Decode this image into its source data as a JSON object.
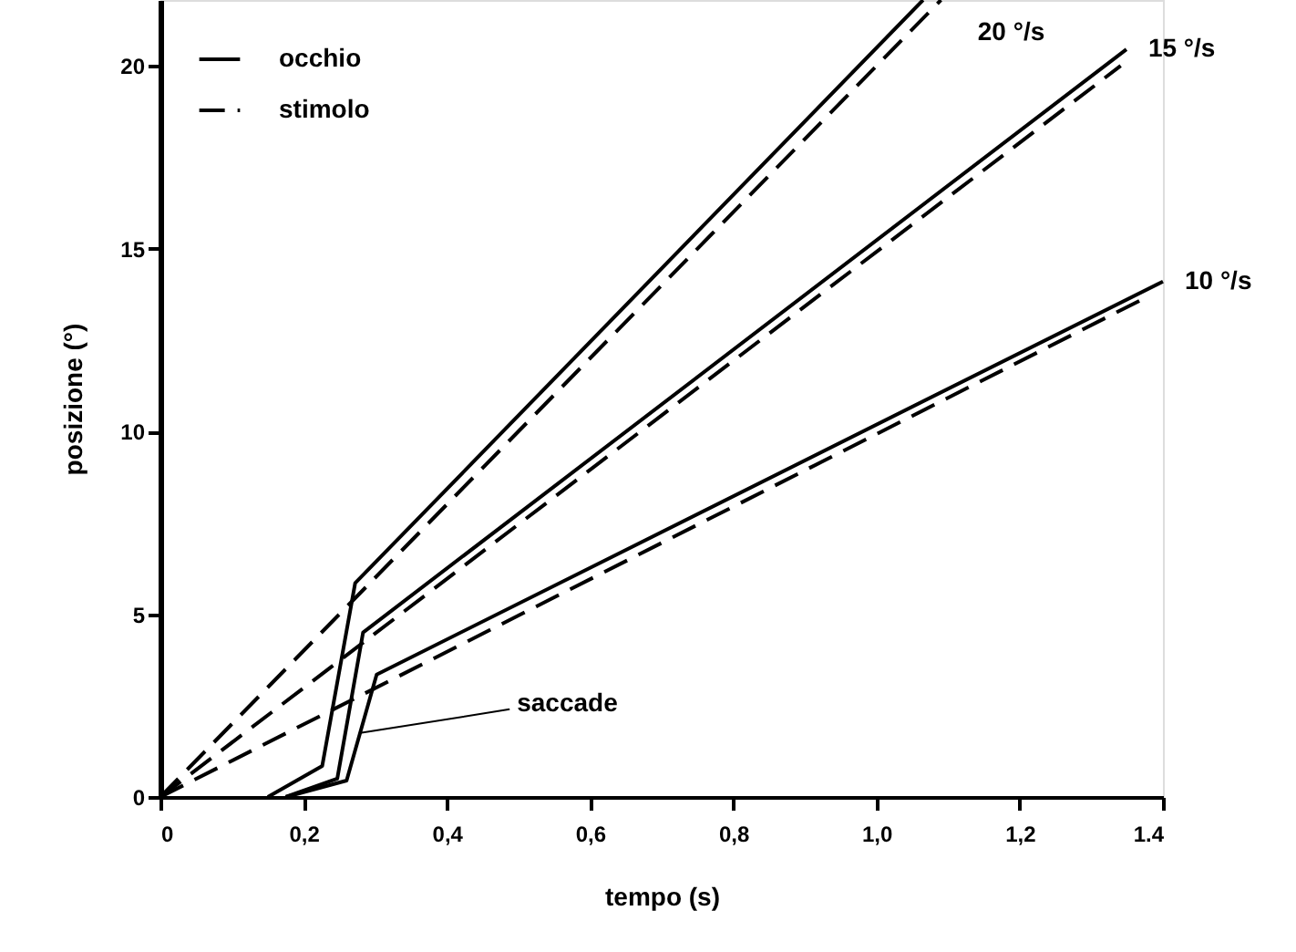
{
  "chart_data": {
    "type": "line",
    "xlabel": "tempo (s)",
    "ylabel": "posizione (°)",
    "xlim": [
      0,
      1.4
    ],
    "ylim": [
      0,
      21.8
    ],
    "xticks": [
      0,
      {
        "value": 0.2,
        "label": "0,2"
      },
      {
        "value": 0.4,
        "label": "0,4"
      },
      {
        "value": 0.6,
        "label": "0,6"
      },
      {
        "value": 0.8,
        "label": "0,8"
      },
      {
        "value": 1.0,
        "label": "1,0"
      },
      {
        "value": 1.2,
        "label": "1,2"
      },
      {
        "value": 1.4,
        "label": "1.4"
      }
    ],
    "yticks": [
      0,
      5,
      10,
      15,
      20
    ],
    "grid": false,
    "legend": "top left",
    "marker": "none",
    "series": [
      {
        "name": "occhio",
        "color": "#000000",
        "line_style": "solid",
        "x": [
          0.15,
          0.226,
          0.272,
          1.065
        ],
        "values": [
          0,
          0.85,
          5.85,
          21.8
        ]
      },
      {
        "name": "stimolo",
        "color": "#000000",
        "line_style": "dashed",
        "x": [
          0,
          1.09
        ],
        "values": [
          0,
          21.8
        ]
      },
      {
        "color": "#000000",
        "line_style": "solid",
        "x": [
          0.175,
          0.247,
          0.283,
          1.349
        ],
        "values": [
          0,
          0.5,
          4.5,
          20.45
        ]
      },
      {
        "color": "#000000",
        "line_style": "dashed",
        "x": [
          0,
          1.341
        ],
        "values": [
          0,
          20.0
        ]
      },
      {
        "color": "#000000",
        "line_style": "solid",
        "x": [
          0.175,
          0.26,
          0.302,
          1.4
        ],
        "values": [
          0,
          0.45,
          3.35,
          14.1
        ]
      },
      {
        "color": "#000000",
        "line_style": "dashed",
        "x": [
          0,
          1.38
        ],
        "values": [
          0,
          13.7
        ]
      }
    ],
    "annotations": [
      {
        "text": "20 °/s",
        "x": 1.065,
        "y": 21.8
      },
      {
        "text": "15 °/s",
        "x": 1.349,
        "y": 20.45
      },
      {
        "text": "10 °/s",
        "x": 1.4,
        "y": 14.1
      },
      {
        "text": "saccade",
        "x": 0.279,
        "y": 1.75
      }
    ]
  }
}
